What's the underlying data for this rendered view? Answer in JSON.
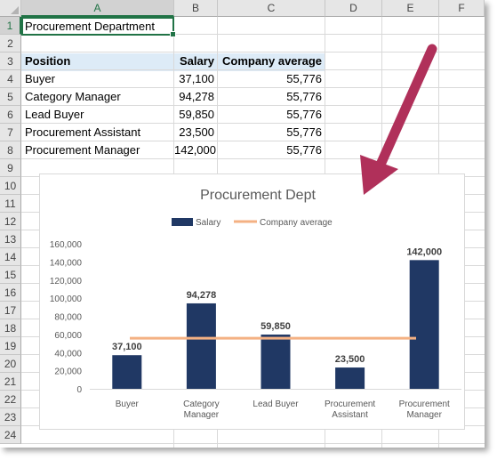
{
  "columns": [
    "A",
    "B",
    "C",
    "D",
    "E",
    "F"
  ],
  "rows": [
    "1",
    "2",
    "3",
    "4",
    "5",
    "6",
    "7",
    "8",
    "9",
    "10",
    "11",
    "12",
    "13",
    "14",
    "15",
    "16",
    "17",
    "18",
    "19",
    "20",
    "21",
    "22",
    "23",
    "24"
  ],
  "title_cell": "Procurement Department",
  "table": {
    "headers": [
      "Position",
      "Salary",
      "Company average"
    ],
    "rows": [
      [
        "Buyer",
        "37,100",
        "55,776"
      ],
      [
        "Category Manager",
        "94,278",
        "55,776"
      ],
      [
        "Lead Buyer",
        "59,850",
        "55,776"
      ],
      [
        "Procurement Assistant",
        "23,500",
        "55,776"
      ],
      [
        "Procurement Manager",
        "142,000",
        "55,776"
      ]
    ]
  },
  "colors": {
    "bar": "#203864",
    "average_line": "#f4b183",
    "arrow": "#b0305a",
    "header_band": "#ddebf7",
    "selection": "#217346"
  },
  "chart_data": {
    "type": "bar",
    "title": "Procurement Dept",
    "categories": [
      [
        "Buyer"
      ],
      [
        "Category",
        "Manager"
      ],
      [
        "Lead Buyer"
      ],
      [
        "Procurement",
        "Assistant"
      ],
      [
        "Procurement",
        "Manager"
      ]
    ],
    "series": [
      {
        "name": "Salary",
        "type": "bar",
        "values": [
          37100,
          94278,
          59850,
          23500,
          142000
        ],
        "labels": [
          "37,100",
          "94,278",
          "59,850",
          "23,500",
          "142,000"
        ]
      },
      {
        "name": "Company average",
        "type": "line",
        "values": [
          55776,
          55776,
          55776,
          55776,
          55776
        ]
      }
    ],
    "ylim": [
      0,
      160000
    ],
    "yticks": [
      0,
      20000,
      40000,
      60000,
      80000,
      100000,
      120000,
      140000,
      160000
    ],
    "ytick_labels": [
      "0",
      "20,000",
      "40,000",
      "60,000",
      "80,000",
      "100,000",
      "120,000",
      "140,000",
      "160,000"
    ],
    "legend": "top",
    "grid": false
  }
}
